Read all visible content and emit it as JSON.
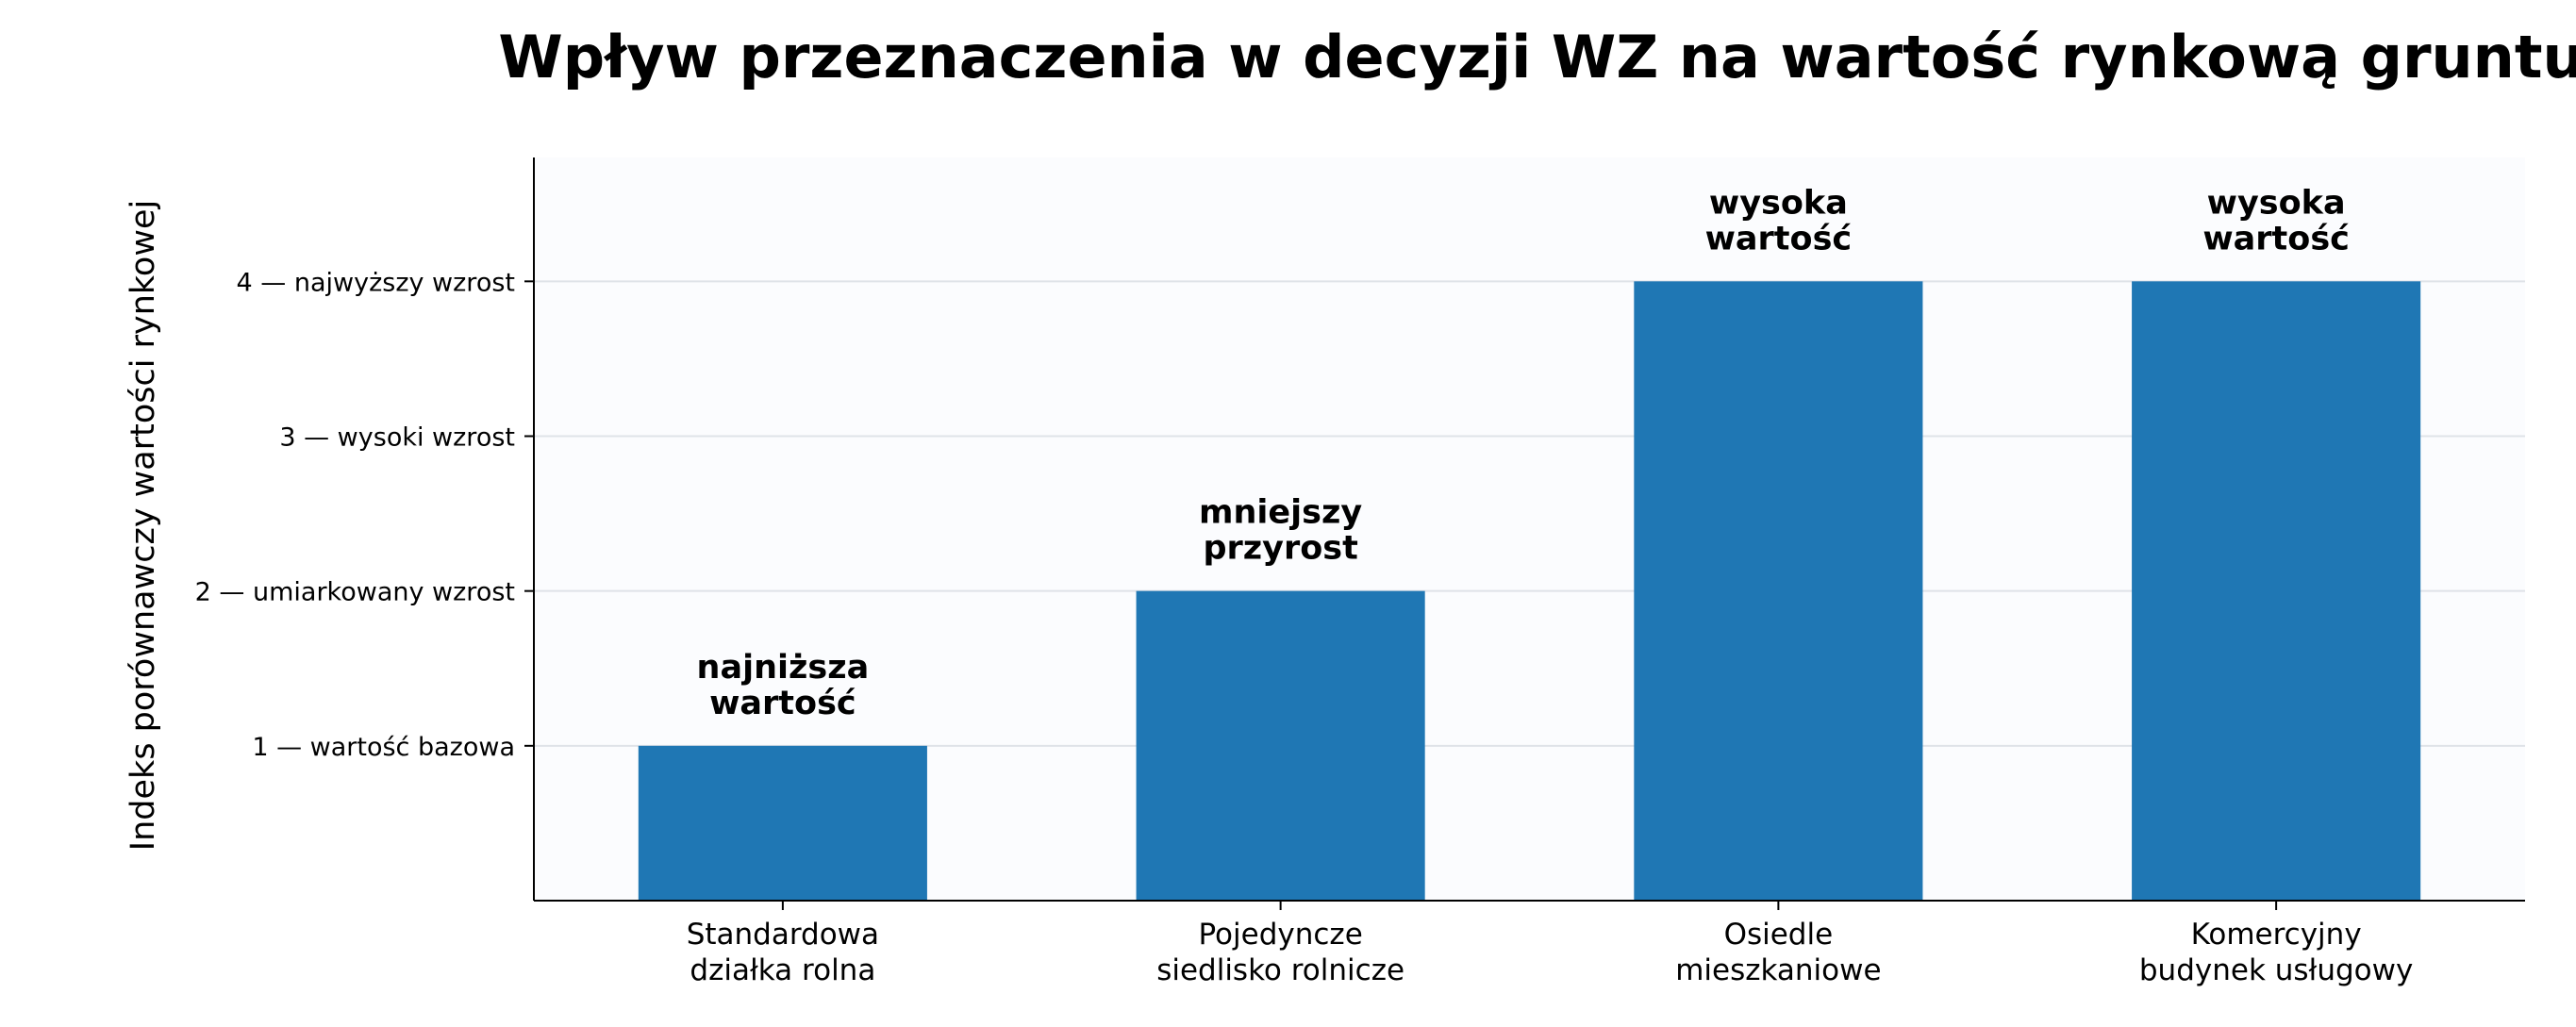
{
  "chart_data": {
    "type": "bar",
    "title": "Wpływ przeznaczenia w decyzji WZ na wartość rynkową gruntu",
    "xlabel": "",
    "ylabel": "Indeks porównawczy wartości rynkowej",
    "ylim": [
      0,
      4.8
    ],
    "grid": "y",
    "legend": "none",
    "categories": [
      [
        "Standardowa",
        "działka rolna"
      ],
      [
        "Pojedyncze",
        "siedlisko rolnicze"
      ],
      [
        "Osiedle",
        "mieszkaniowe"
      ],
      [
        "Komercyjny",
        "budynek usługowy"
      ]
    ],
    "values": [
      1,
      2,
      4,
      4
    ],
    "data_labels": [
      [
        "najniższa",
        "wartość"
      ],
      [
        "mniejszy",
        "przyrost"
      ],
      [
        "wysoka",
        "wartość"
      ],
      [
        "wysoka",
        "wartość"
      ]
    ],
    "yticks": [
      {
        "value": 1,
        "label": "1 — wartość bazowa"
      },
      {
        "value": 2,
        "label": "2 — umiarkowany wzrost"
      },
      {
        "value": 3,
        "label": "3 — wysoki wzrost"
      },
      {
        "value": 4,
        "label": "4 — najwyższy wzrost"
      }
    ],
    "colors": {
      "bar": "#1f77b4",
      "plot_bg": "#fbfcfe",
      "grid": "#dfe3e8",
      "axis": "#000000"
    }
  }
}
